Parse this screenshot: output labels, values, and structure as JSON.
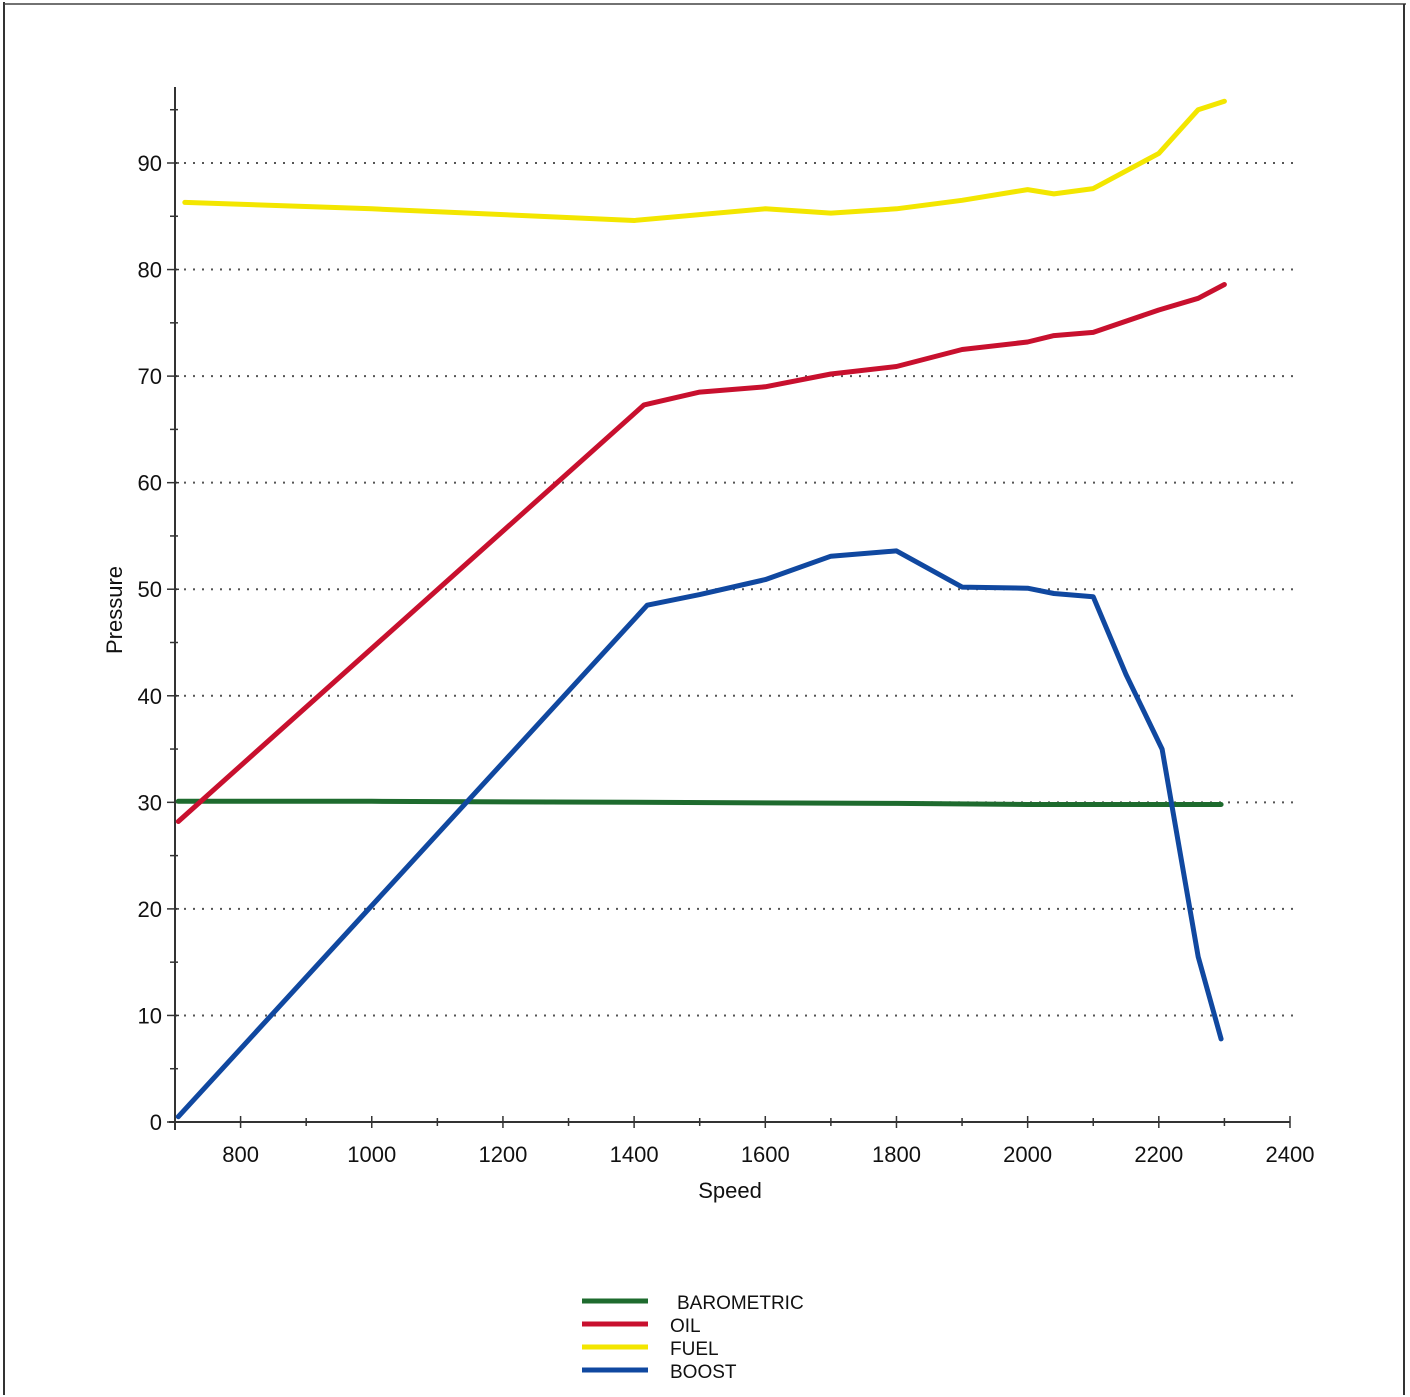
{
  "chart_data": {
    "type": "line",
    "xlabel": "Speed",
    "ylabel": "Pressure",
    "xlim": [
      700,
      2400
    ],
    "ylim": [
      0,
      95
    ],
    "xticks": [
      800,
      1000,
      1200,
      1400,
      1600,
      1800,
      2000,
      2200,
      2400
    ],
    "yticks": [
      0,
      10,
      20,
      30,
      40,
      50,
      60,
      70,
      80,
      90
    ],
    "grid": "horizontal-dotted",
    "legend_position": "bottom-center",
    "series": [
      {
        "name": "BAROMETRIC",
        "color": "#1e6b2e",
        "x": [
          705,
          1000,
          1400,
          1800,
          2000,
          2295
        ],
        "y": [
          30.1,
          30.1,
          30.0,
          29.9,
          29.8,
          29.8
        ]
      },
      {
        "name": "OIL",
        "color": "#c8102e",
        "x": [
          705,
          1415,
          1500,
          1600,
          1700,
          1800,
          1900,
          2000,
          2040,
          2100,
          2200,
          2260,
          2300
        ],
        "y": [
          28.2,
          67.3,
          68.5,
          69.0,
          70.2,
          70.9,
          72.5,
          73.2,
          73.8,
          74.1,
          76.2,
          77.3,
          78.6
        ]
      },
      {
        "name": "FUEL",
        "color": "#f3e600",
        "x": [
          715,
          1000,
          1400,
          1600,
          1700,
          1800,
          1900,
          2000,
          2040,
          2100,
          2200,
          2260,
          2300
        ],
        "y": [
          86.3,
          85.7,
          84.6,
          85.7,
          85.3,
          85.7,
          86.5,
          87.5,
          87.1,
          87.6,
          90.9,
          95.0,
          95.8
        ]
      },
      {
        "name": "BOOST",
        "color": "#1048a0",
        "x": [
          705,
          1420,
          1500,
          1600,
          1700,
          1800,
          1900,
          2000,
          2040,
          2100,
          2150,
          2205,
          2260,
          2295
        ],
        "y": [
          0.5,
          48.5,
          49.5,
          50.9,
          53.1,
          53.6,
          50.2,
          50.1,
          49.6,
          49.3,
          42.0,
          35.0,
          15.5,
          7.8
        ]
      }
    ]
  }
}
